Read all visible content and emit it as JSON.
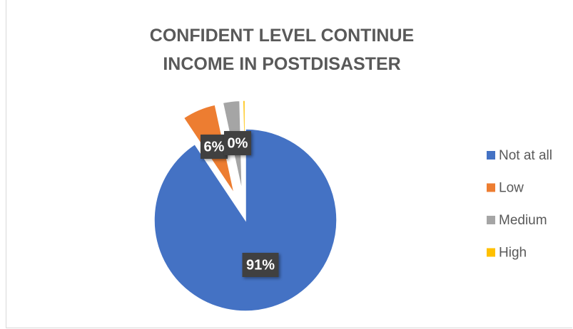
{
  "chart_data": {
    "type": "pie",
    "title": "CONFIDENT LEVEL CONTINUE INCOME IN POSTDISASTER",
    "categories": [
      "Not at all",
      "Low",
      "Medium",
      "High"
    ],
    "values": [
      91,
      6,
      3,
      0.4
    ],
    "value_labels": [
      "91%",
      "6%",
      null,
      "0%"
    ],
    "colors": [
      "#4472c4",
      "#ed7d31",
      "#a5a5a5",
      "#ffc000"
    ],
    "legend": "right"
  }
}
